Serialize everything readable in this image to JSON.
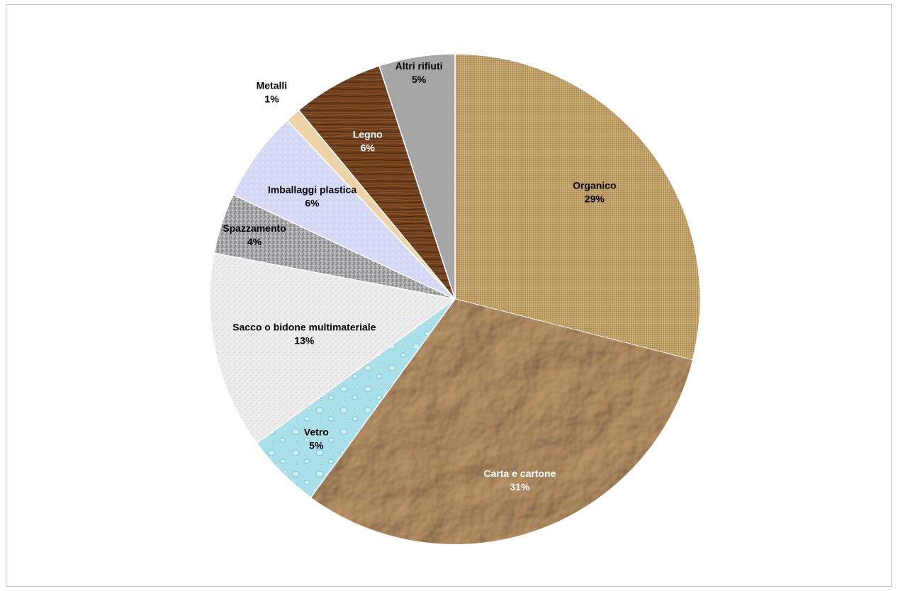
{
  "chart_data": {
    "type": "pie",
    "title": "",
    "legend": "none",
    "unit": "%",
    "slices": [
      {
        "name": "Organico",
        "label": "Organico",
        "value": 29,
        "value_label": "29%",
        "color": "#c2a26a",
        "texture": "burlap",
        "label_color": "#000000"
      },
      {
        "name": "Carta e cartone",
        "label": "Carta e cartone",
        "value": 31,
        "value_label": "31%",
        "color": "#a8825a",
        "texture": "crumpled-paper",
        "label_color": "#ffffff"
      },
      {
        "name": "Vetro",
        "label": "Vetro",
        "value": 5,
        "value_label": "5%",
        "color": "#a9e0ea",
        "texture": "water-drops",
        "label_color": "#000000"
      },
      {
        "name": "Sacco o bidone multimateriale",
        "label": "Sacco o bidone multimateriale",
        "value": 13,
        "value_label": "13%",
        "color": "#ececec",
        "texture": "speckle-light",
        "label_color": "#000000"
      },
      {
        "name": "Spazzamento",
        "label": "Spazzamento",
        "value": 4,
        "value_label": "4%",
        "color": "#a8a8aa",
        "texture": "granite",
        "label_color": "#000000"
      },
      {
        "name": "Imballaggi plastica",
        "label": "Imballaggi plastica",
        "value": 6,
        "value_label": "6%",
        "color": "#d4dcf5",
        "texture": "pastel-speckle",
        "label_color": "#000000"
      },
      {
        "name": "Metalli",
        "label": "Metalli",
        "value": 1,
        "value_label": "1%",
        "color": "#ecd4a8",
        "texture": "plain",
        "label_color": "#000000"
      },
      {
        "name": "Legno",
        "label": "Legno",
        "value": 6,
        "value_label": "6%",
        "color": "#6e3f1c",
        "texture": "wood",
        "label_color": "#ffffff"
      },
      {
        "name": "Altri rifiuti",
        "label": "Altri rifiuti",
        "value": 5,
        "value_label": "5%",
        "color": "#a6a6a6",
        "texture": "plain",
        "label_color": "#000000"
      }
    ]
  }
}
